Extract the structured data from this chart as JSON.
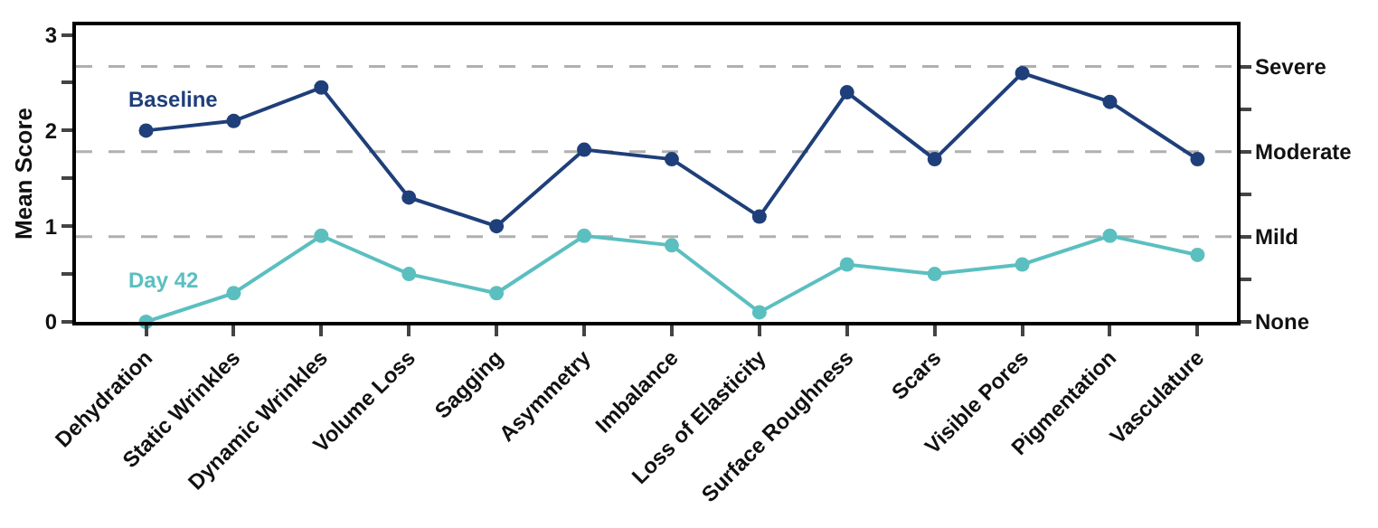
{
  "chart_data": {
    "type": "line",
    "ylabel": "Mean Score",
    "categories": [
      "Dehydration",
      "Static Wrinkles",
      "Dynamic Wrinkles",
      "Volume Loss",
      "Sagging",
      "Asymmetry",
      "Imbalance",
      "Loss of Elasticity",
      "Surface Roughness",
      "Scars",
      "Visible Pores",
      "Pigmentation",
      "Vasculature"
    ],
    "series": [
      {
        "name": "Baseline",
        "color": "#1f3f7a",
        "values": [
          2.0,
          2.1,
          2.45,
          1.3,
          1.0,
          1.8,
          1.7,
          1.1,
          2.4,
          1.7,
          2.6,
          2.3,
          1.7
        ]
      },
      {
        "name": "Day 42",
        "color": "#5bbfc0",
        "values": [
          0.0,
          0.3,
          0.9,
          0.5,
          0.3,
          0.9,
          0.8,
          0.1,
          0.6,
          0.5,
          0.6,
          0.9,
          0.7
        ]
      }
    ],
    "ylim": [
      0,
      3.1
    ],
    "yticks": [
      0,
      {
        "value": 0.5,
        "label": null
      },
      1,
      {
        "value": 1.5,
        "label": null
      },
      2,
      {
        "value": 2.5,
        "label": null
      },
      3
    ],
    "ref_lines": [
      {
        "axis": "y",
        "value": 0,
        "label": "None"
      },
      {
        "axis": "y",
        "value": 0.89,
        "label": "Mild",
        "color": "#b0b0b0",
        "line_style": "dashed"
      },
      {
        "axis": "y",
        "value": 1.78,
        "label": "Moderate",
        "color": "#b0b0b0",
        "line_style": "dashed"
      },
      {
        "axis": "y",
        "value": 2.67,
        "label": "Severe",
        "color": "#b0b0b0",
        "line_style": "dashed"
      }
    ],
    "marker": "circle",
    "line_style": "solid",
    "legend": false,
    "grid": false
  }
}
